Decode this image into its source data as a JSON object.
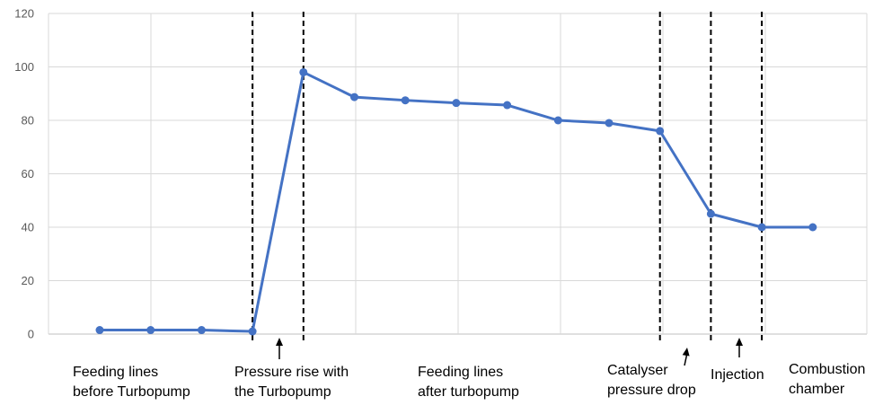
{
  "chart_data": {
    "type": "line",
    "title": "",
    "xlabel": "",
    "ylabel": "",
    "ylim": [
      0,
      120
    ],
    "y_ticks": [
      0,
      20,
      40,
      60,
      80,
      100,
      120
    ],
    "grid": true,
    "legend": "none",
    "series": [
      {
        "color": "#4472c4",
        "values": [
          1.5,
          1.5,
          1.5,
          1,
          98,
          88.7,
          87.5,
          86.5,
          85.7,
          80,
          79,
          76,
          45,
          40,
          40
        ]
      }
    ],
    "annotations": [
      {
        "id": "feed-before",
        "lines": [
          "Feeding lines",
          "before Turbopump"
        ]
      },
      {
        "id": "pressure-rise",
        "lines": [
          "Pressure rise with",
          "the Turbopump"
        ],
        "arrow": true
      },
      {
        "id": "feed-after",
        "lines": [
          "Feeding lines",
          "after turbopump"
        ]
      },
      {
        "id": "catalyser",
        "lines": [
          "Catalyser",
          "pressure drop"
        ],
        "arrow": true
      },
      {
        "id": "injection",
        "lines": [
          "Injection"
        ],
        "arrow": true
      },
      {
        "id": "combustion",
        "lines": [
          "Combustion",
          "chamber"
        ]
      }
    ],
    "dashed_dividers_between_points": [
      3,
      4,
      11,
      12,
      13
    ],
    "colors": {
      "line": "#4472c4",
      "grid": "#d9d9d9",
      "divider": "#000000",
      "tick_text": "#595959"
    }
  }
}
